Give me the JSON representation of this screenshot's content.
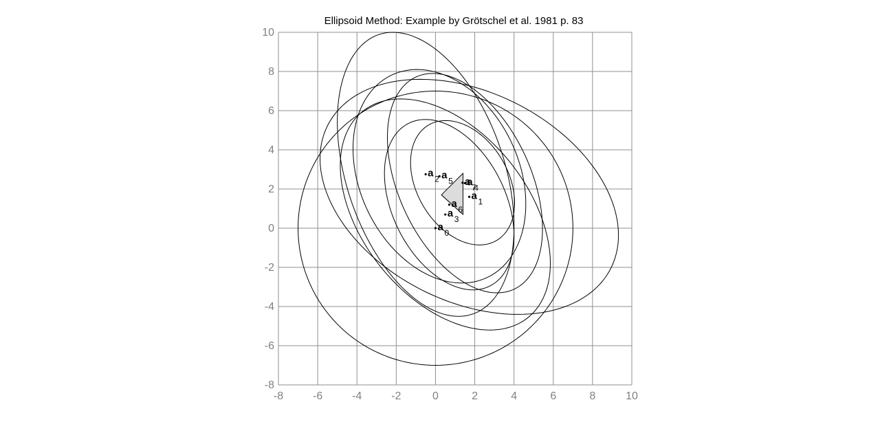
{
  "chart_data": {
    "type": "line",
    "title": "Ellipsoid Method: Example by Grötschel et al. 1981 p. 83",
    "xlabel": "",
    "ylabel": "",
    "xlim": [
      -8,
      10
    ],
    "ylim": [
      -8,
      10
    ],
    "x_ticks": [
      -8,
      -6,
      -4,
      -2,
      0,
      2,
      4,
      6,
      8,
      10
    ],
    "y_ticks": [
      -8,
      -6,
      -4,
      -2,
      0,
      2,
      4,
      6,
      8,
      10
    ],
    "grid": true,
    "colors": {
      "grid": "#8f8f8f",
      "curve": "#000000",
      "polygon_fill": "#dcdcdc",
      "tick_text": "#808080"
    },
    "polygon": [
      [
        1.4,
        2.8
      ],
      [
        0.3,
        1.7
      ],
      [
        1.4,
        0.7
      ]
    ],
    "points": [
      {
        "label": "a",
        "sub": "0",
        "x": 0.0,
        "y": 0.0
      },
      {
        "label": "a",
        "sub": "1",
        "x": 1.72,
        "y": 1.6
      },
      {
        "label": "a",
        "sub": "2",
        "x": -0.5,
        "y": 2.75
      },
      {
        "label": "a",
        "sub": "3",
        "x": 0.5,
        "y": 0.7
      },
      {
        "label": "a",
        "sub": "4",
        "x": 1.5,
        "y": 2.3
      },
      {
        "label": "a",
        "sub": "5",
        "x": 0.2,
        "y": 2.65
      },
      {
        "label": "a",
        "sub": "6",
        "x": 0.7,
        "y": 1.2
      },
      {
        "label": "a",
        "sub": "7",
        "x": 1.38,
        "y": 2.32
      }
    ],
    "ellipses": [
      {
        "center": [
          0.0,
          0.0
        ],
        "bounds": {
          "xmin": -7,
          "xmax": 7,
          "ymin": -7,
          "ymax": 7
        }
      },
      {
        "center": [
          1.72,
          1.6
        ],
        "bounds": {
          "xmin": -7,
          "xmax": 8.2,
          "ymin": -5,
          "ymax": 7
        }
      },
      {
        "center": [
          -0.5,
          2.75
        ],
        "bounds": {
          "xmin": -5,
          "xmax": 4,
          "ymin": -4.8,
          "ymax": 9.7
        }
      },
      {
        "center": [
          0.5,
          0.7
        ],
        "bounds": {
          "xmin": -3.7,
          "xmax": 7,
          "ymin": -4.8,
          "ymax": 7
        }
      },
      {
        "center": [
          1.5,
          2.3
        ],
        "bounds": {
          "xmin": -2.5,
          "xmax": 5.4,
          "ymin": -4.1,
          "ymax": 7.1
        }
      },
      {
        "center": [
          0.2,
          2.65
        ],
        "bounds": {
          "xmin": -5,
          "xmax": 3.8,
          "ymin": -2.8,
          "ymax": 8.1
        }
      },
      {
        "center": [
          0.7,
          1.2
        ],
        "bounds": {
          "xmin": -2,
          "xmax": 4.6,
          "ymin": -2.5,
          "ymax": 6.2
        }
      },
      {
        "center": [
          1.38,
          2.32
        ],
        "bounds": {
          "xmin": -1.4,
          "xmax": 3.9,
          "ymin": -0.85,
          "ymax": 5.5
        }
      }
    ]
  }
}
